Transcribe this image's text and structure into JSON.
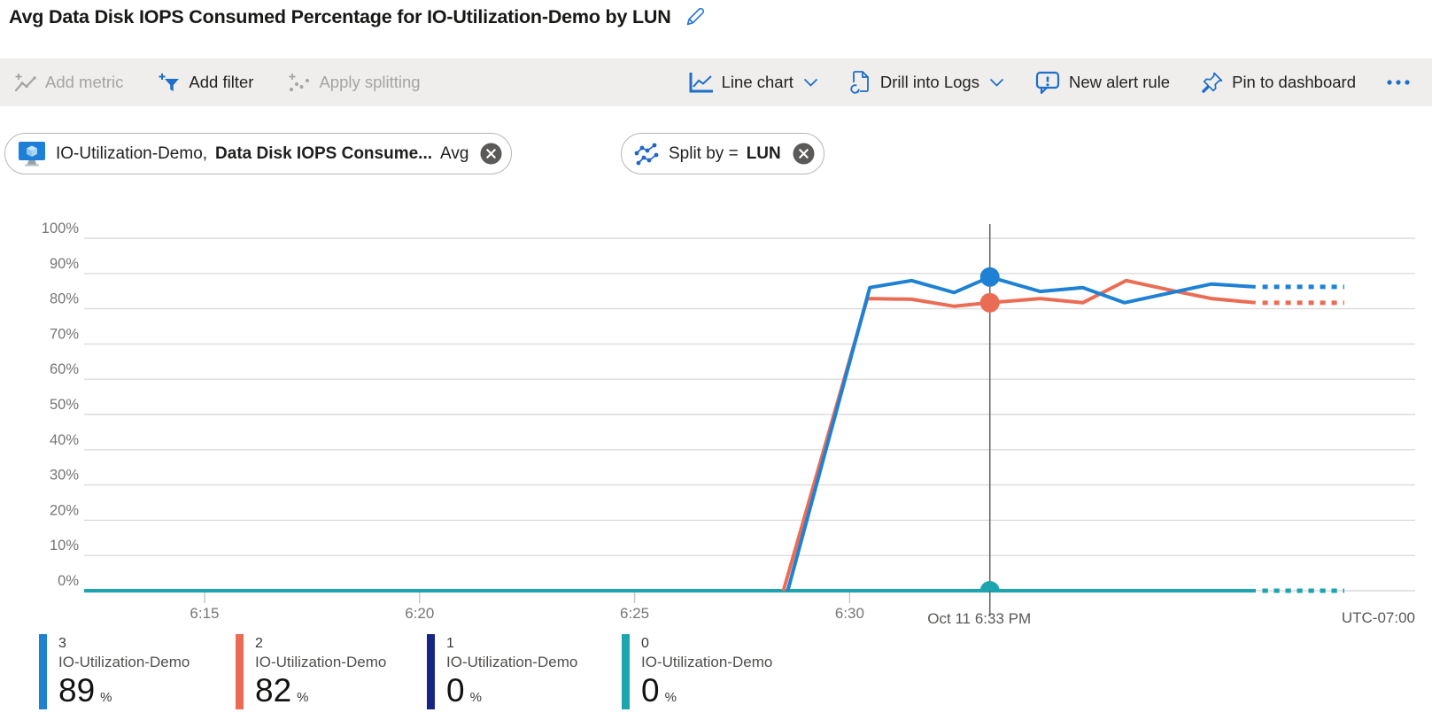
{
  "title": "Avg Data Disk IOPS Consumed Percentage for IO-Utilization-Demo by LUN",
  "toolbar": {
    "add_metric": "Add metric",
    "add_filter": "Add filter",
    "apply_splitting": "Apply splitting",
    "chart_type": "Line chart",
    "drill_into_logs": "Drill into Logs",
    "new_alert_rule": "New alert rule",
    "pin_to_dashboard": "Pin to dashboard"
  },
  "filters": {
    "metric": {
      "scope": "IO-Utilization-Demo,",
      "name": "Data Disk IOPS Consume...",
      "aggregation": "Avg"
    },
    "split": {
      "label": "Split by =",
      "value": "LUN"
    }
  },
  "colors": {
    "accent": "#1E6FC8",
    "toolbar_background": "#EFEEED",
    "grid": "#DCDCDC",
    "axis_label": "#767676",
    "crosshair": "#6A6A6A",
    "series_blue": "#1E81D4",
    "series_orange": "#EB6C55",
    "series_navy": "#172586",
    "series_teal": "#1CA5AF"
  },
  "chart_data": {
    "type": "line",
    "title": "Avg Data Disk IOPS Consumed Percentage for IO-Utilization-Demo by LUN",
    "unit": "%",
    "y_axis": {
      "min": 0,
      "max": 100,
      "tick_step": 10,
      "ticks": [
        "0%",
        "10%",
        "20%",
        "30%",
        "40%",
        "50%",
        "60%",
        "70%",
        "80%",
        "90%",
        "100%"
      ]
    },
    "x_axis": {
      "ticks": [
        {
          "label": "6:15",
          "minute": 15
        },
        {
          "label": "6:20",
          "minute": 20
        },
        {
          "label": "6:25",
          "minute": 25
        },
        {
          "label": "6:30",
          "minute": 30
        }
      ],
      "timezone_label": "UTC-07:00"
    },
    "x_domain_minutes": [
      12.2,
      43.15
    ],
    "solid_end_minute": 39.44,
    "forecast_minutes": [
      39.6,
      41.5
    ],
    "crosshair": {
      "label": "Oct 11 6:33 PM",
      "minute": 33.26
    },
    "series": [
      {
        "lun": "1",
        "name": "IO-Utilization-Demo",
        "color": "#172586",
        "crosshair_value": 0,
        "points_min_pct": [
          [
            12.2,
            0
          ],
          [
            39.44,
            0
          ]
        ],
        "forecast_value": 0
      },
      {
        "lun": "0",
        "name": "IO-Utilization-Demo",
        "color": "#1CA5AF",
        "crosshair_value": 0,
        "points_min_pct": [
          [
            12.2,
            0
          ],
          [
            39.44,
            0
          ]
        ],
        "forecast_value": 0,
        "dot": {
          "minute": 33.26,
          "value": 0,
          "style": "dome"
        }
      },
      {
        "lun": "2",
        "name": "IO-Utilization-Demo",
        "color": "#EB6C55",
        "crosshair_value": 82,
        "points_min_pct": [
          [
            28.46,
            0
          ],
          [
            30.41,
            82.9
          ],
          [
            31.44,
            82.7
          ],
          [
            32.43,
            80.7
          ],
          [
            33.26,
            81.7
          ],
          [
            34.43,
            82.9
          ],
          [
            35.42,
            81.7
          ],
          [
            36.43,
            88
          ],
          [
            37.68,
            84.7
          ],
          [
            38.41,
            82.9
          ],
          [
            39.44,
            81.7
          ]
        ],
        "forecast_value": 81.7,
        "dot": {
          "minute": 33.26,
          "value": 81.7,
          "style": "circle"
        }
      },
      {
        "lun": "3",
        "name": "IO-Utilization-Demo",
        "color": "#1E81D4",
        "crosshair_value": 89,
        "points_min_pct": [
          [
            28.56,
            0
          ],
          [
            30.47,
            86
          ],
          [
            31.44,
            88
          ],
          [
            32.43,
            84.6
          ],
          [
            33.26,
            89
          ],
          [
            34.43,
            84.9
          ],
          [
            35.42,
            86
          ],
          [
            36.39,
            81.7
          ],
          [
            37.42,
            84.4
          ],
          [
            38.41,
            87
          ],
          [
            39.44,
            86.2
          ]
        ],
        "forecast_value": 86.2,
        "dot": {
          "minute": 33.26,
          "value": 89,
          "style": "circle"
        }
      }
    ]
  },
  "legend": [
    {
      "lun": "3",
      "name": "IO-Utilization-Demo",
      "value": "89",
      "unit": "%",
      "color": "#1E81D4"
    },
    {
      "lun": "2",
      "name": "IO-Utilization-Demo",
      "value": "82",
      "unit": "%",
      "color": "#EB6C55"
    },
    {
      "lun": "1",
      "name": "IO-Utilization-Demo",
      "value": "0",
      "unit": "%",
      "color": "#172586"
    },
    {
      "lun": "0",
      "name": "IO-Utilization-Demo",
      "value": "0",
      "unit": "%",
      "color": "#1CA5AF"
    }
  ]
}
